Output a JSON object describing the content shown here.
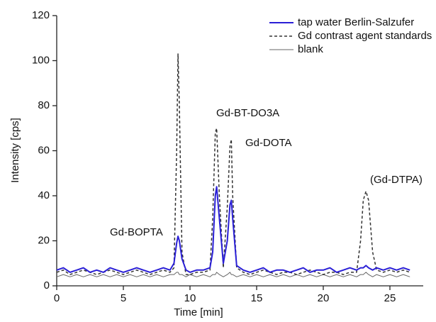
{
  "chart_data": {
    "type": "line",
    "x_label": "Time [min]",
    "y_label": "Intensity [cps]",
    "xlim": [
      0,
      27.5
    ],
    "ylim": [
      0,
      120
    ],
    "xticks": [
      0,
      5,
      10,
      15,
      20,
      25
    ],
    "yticks": [
      0,
      20,
      40,
      60,
      80,
      100,
      120
    ],
    "legend": "upper right",
    "x": [
      0,
      0.5,
      1,
      1.5,
      2,
      2.5,
      3,
      3.5,
      4,
      4.5,
      5,
      5.5,
      6,
      6.5,
      7,
      7.5,
      8,
      8.5,
      8.8,
      9.0,
      9.1,
      9.2,
      9.4,
      9.7,
      10,
      10.5,
      11,
      11.5,
      11.7,
      11.9,
      12.0,
      12.2,
      12.5,
      12.8,
      13.0,
      13.1,
      13.2,
      13.5,
      14,
      14.5,
      15,
      15.5,
      16,
      16.5,
      17,
      17.5,
      18,
      18.5,
      19,
      19.5,
      20,
      20.5,
      21,
      21.5,
      22,
      22.5,
      22.8,
      23.0,
      23.2,
      23.4,
      23.7,
      24,
      24.5,
      25,
      25.5,
      26,
      26.5
    ],
    "series": [
      {
        "name": "tap water Berlin-Salzufer",
        "color": "#2a1fd6",
        "line_style": "solid",
        "line_width": 2,
        "values": [
          7,
          8,
          6,
          7,
          8,
          6,
          7,
          6,
          8,
          7,
          6,
          7,
          8,
          7,
          6,
          7,
          8,
          7,
          10,
          19,
          22,
          20,
          12,
          7,
          6,
          7,
          7,
          8,
          15,
          40,
          44,
          30,
          10,
          20,
          36,
          38,
          30,
          9,
          7,
          6,
          7,
          8,
          6,
          7,
          7,
          6,
          7,
          8,
          6,
          7,
          7,
          8,
          6,
          7,
          8,
          7,
          8,
          8,
          9,
          8,
          7,
          8,
          7,
          8,
          7,
          8,
          7
        ]
      },
      {
        "name": "Gd contrast agent standards",
        "color": "#333333",
        "line_style": "dashed",
        "line_width": 1.5,
        "values": [
          6,
          7,
          5,
          6,
          7,
          6,
          5,
          6,
          7,
          6,
          5,
          6,
          7,
          6,
          5,
          6,
          7,
          6,
          8,
          60,
          103,
          80,
          15,
          5,
          5,
          6,
          6,
          7,
          30,
          68,
          70,
          40,
          8,
          35,
          62,
          65,
          40,
          8,
          6,
          5,
          6,
          7,
          6,
          5,
          6,
          6,
          5,
          6,
          7,
          6,
          5,
          6,
          6,
          5,
          6,
          6,
          20,
          38,
          42,
          38,
          15,
          7,
          6,
          7,
          6,
          7,
          6
        ]
      },
      {
        "name": "blank",
        "color": "#666666",
        "line_style": "solid",
        "line_width": 1,
        "values": [
          4,
          5,
          4,
          5,
          4,
          5,
          4,
          5,
          4,
          5,
          4,
          5,
          4,
          5,
          4,
          5,
          4,
          5,
          5,
          6,
          6,
          5,
          5,
          4,
          5,
          4,
          5,
          4,
          5,
          5,
          6,
          5,
          4,
          5,
          6,
          5,
          5,
          4,
          5,
          4,
          5,
          4,
          5,
          4,
          5,
          4,
          5,
          4,
          5,
          4,
          5,
          4,
          5,
          4,
          5,
          4,
          5,
          5,
          6,
          5,
          4,
          5,
          4,
          5,
          4,
          5,
          4
        ]
      }
    ],
    "annotations": [
      "Gd-BOPTA",
      "Gd-BT-DO3A",
      "Gd-DOTA",
      "(Gd-DTPA)"
    ]
  }
}
